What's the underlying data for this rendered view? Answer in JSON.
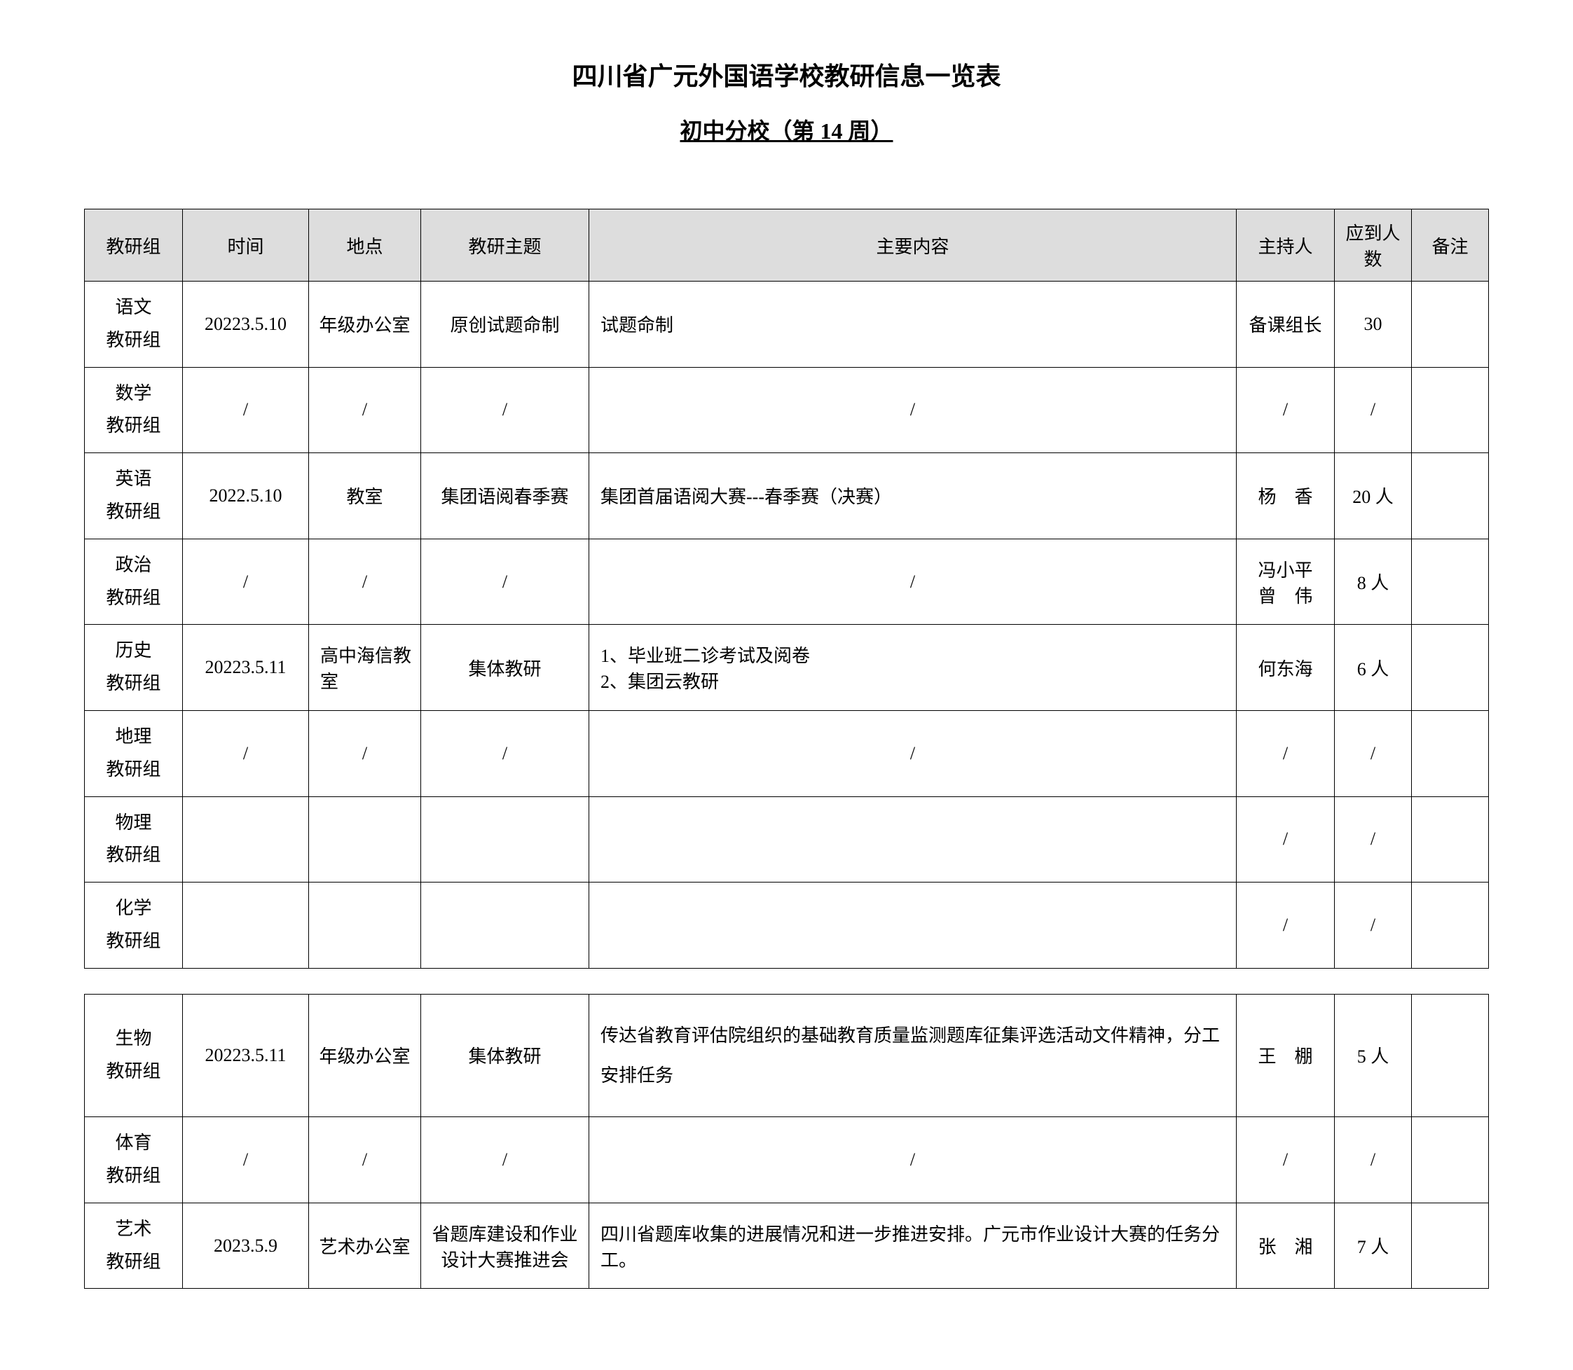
{
  "header": {
    "main_title": "四川省广元外国语学校教研信息一览表",
    "sub_title": "初中分校（第 14 周）"
  },
  "columns": {
    "group": "教研组",
    "time": "时间",
    "location": "地点",
    "topic": "教研主题",
    "content": "主要内容",
    "host": "主持人",
    "count": "应到人数",
    "note": "备注"
  },
  "table1_rows": [
    {
      "group": "语文教研组",
      "time": "20223.5.10",
      "location": "年级办公室",
      "topic": "原创试题命制",
      "content": "试题命制",
      "host": "备课组长",
      "count": "30",
      "note": ""
    },
    {
      "group": "数学教研组",
      "time": "/",
      "location": "/",
      "topic": "/",
      "content": "/",
      "host": "/",
      "count": "/",
      "note": ""
    },
    {
      "group": "英语教研组",
      "time": "2022.5.10",
      "location": "教室",
      "topic": "集团语阅春季赛",
      "content": "集团首届语阅大赛---春季赛（决赛）",
      "host": "杨　香",
      "count": "20 人",
      "note": ""
    },
    {
      "group": "政治教研组",
      "time": "/",
      "location": "/",
      "topic": "/",
      "content": "/",
      "host_line1": "冯小平",
      "host_line2": "曾　伟",
      "count": "8 人",
      "note": ""
    },
    {
      "group": "历史教研组",
      "time": "20223.5.11",
      "location": "高中海信教室",
      "topic": "集体教研",
      "content_line1": "1、毕业班二诊考试及阅卷",
      "content_line2": "2、集团云教研",
      "host": "何东海",
      "count": "6 人",
      "note": ""
    },
    {
      "group": "地理教研组",
      "time": "/",
      "location": "/",
      "topic": "/",
      "content": "/",
      "host": "/",
      "count": "/",
      "note": ""
    },
    {
      "group": "物理教研组",
      "time": "",
      "location": "",
      "topic": "",
      "content": "",
      "host": "/",
      "count": "/",
      "note": ""
    },
    {
      "group": "化学教研组",
      "time": "",
      "location": "",
      "topic": "",
      "content": "",
      "host": "/",
      "count": "/",
      "note": ""
    }
  ],
  "table2_rows": [
    {
      "group": "生物教研组",
      "time": "20223.5.11",
      "location": "年级办公室",
      "topic": "集体教研",
      "content": "传达省教育评估院组织的基础教育质量监测题库征集评选活动文件精神，分工安排任务",
      "host": "王　棚",
      "count": "5 人",
      "note": ""
    },
    {
      "group": "体育教研组",
      "time": "/",
      "location": "/",
      "topic": "/",
      "content": "/",
      "host": "/",
      "count": "/",
      "note": ""
    },
    {
      "group": "艺术教研组",
      "time": "2023.5.9",
      "location": "艺术办公室",
      "topic": "省题库建设和作业设计大赛推进会",
      "content": "四川省题库收集的进展情况和进一步推进安排。广元市作业设计大赛的任务分工。",
      "host": "张　湘",
      "count": "7 人",
      "note": ""
    }
  ]
}
